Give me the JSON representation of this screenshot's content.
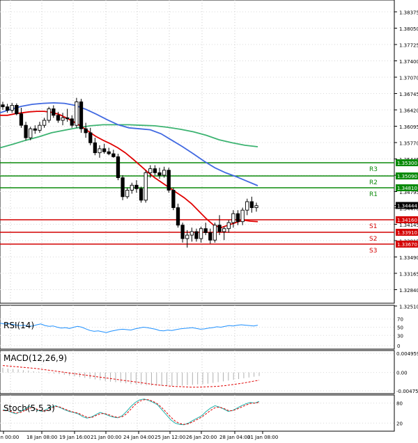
{
  "chart_data": {
    "type": "candlestick",
    "title": "",
    "price_axis": {
      "ticks": [
        "1.38375",
        "1.38050",
        "1.37725",
        "1.37400",
        "1.37070",
        "1.36745",
        "1.36420",
        "1.36095",
        "1.35770",
        "1.35445",
        "1.35120",
        "1.34795",
        "1.34470",
        "1.34145",
        "1.33815",
        "1.33490",
        "1.33165",
        "1.32840",
        "1.32510"
      ],
      "ylim": [
        1.3251,
        1.3851
      ]
    },
    "time_axis": {
      "labels": [
        "17 Jan 00:00",
        "18 Jan 08:00",
        "19 Jan 16:00",
        "21 Jan 00:00",
        "24 Jan 04:00",
        "25 Jan 12:00",
        "26 Jan 20:00",
        "28 Jan 04:00",
        "31 Jan 08:00"
      ]
    },
    "levels": [
      {
        "name": "R3",
        "value": 1.353,
        "value_label": "1.35300",
        "kind": "resistance"
      },
      {
        "name": "R2",
        "value": 1.3509,
        "value_label": "1.35090",
        "kind": "resistance"
      },
      {
        "name": "R1",
        "value": 1.3481,
        "value_label": "1.34810",
        "kind": "resistance"
      },
      {
        "name": "S1",
        "value": 1.3416,
        "value_label": "1.34160",
        "kind": "support"
      },
      {
        "name": "S2",
        "value": 1.3391,
        "value_label": "1.33910",
        "kind": "support"
      },
      {
        "name": "S3",
        "value": 1.3367,
        "value_label": "1.33670",
        "kind": "support"
      }
    ],
    "current_price": {
      "value": 1.34444,
      "label": "1.34444"
    },
    "candles": [
      [
        1.3646,
        1.3652,
        1.3636,
        1.3642
      ],
      [
        1.3642,
        1.3648,
        1.363,
        1.3635
      ],
      [
        1.3635,
        1.365,
        1.363,
        1.3645
      ],
      [
        1.3645,
        1.3649,
        1.3625,
        1.3628
      ],
      [
        1.3628,
        1.364,
        1.36,
        1.3605
      ],
      [
        1.3605,
        1.3612,
        1.3575,
        1.358
      ],
      [
        1.358,
        1.3602,
        1.3575,
        1.3598
      ],
      [
        1.3598,
        1.3605,
        1.3588,
        1.3595
      ],
      [
        1.3595,
        1.3612,
        1.359,
        1.3605
      ],
      [
        1.3605,
        1.362,
        1.36,
        1.3615
      ],
      [
        1.3615,
        1.3642,
        1.361,
        1.3638
      ],
      [
        1.3638,
        1.3645,
        1.362,
        1.3625
      ],
      [
        1.3625,
        1.3632,
        1.361,
        1.3615
      ],
      [
        1.3615,
        1.363,
        1.3605,
        1.362
      ],
      [
        1.362,
        1.3638,
        1.3612,
        1.3618
      ],
      [
        1.3618,
        1.3625,
        1.36,
        1.3605
      ],
      [
        1.3605,
        1.366,
        1.36,
        1.3652
      ],
      [
        1.3652,
        1.3658,
        1.359,
        1.3598
      ],
      [
        1.3598,
        1.361,
        1.358,
        1.359
      ],
      [
        1.359,
        1.36,
        1.3565,
        1.357
      ],
      [
        1.357,
        1.358,
        1.3545,
        1.355
      ],
      [
        1.355,
        1.3565,
        1.354,
        1.3558
      ],
      [
        1.3558,
        1.3568,
        1.3548,
        1.3552
      ],
      [
        1.3552,
        1.356,
        1.3545,
        1.3548
      ],
      [
        1.3548,
        1.3556,
        1.354,
        1.3542
      ],
      [
        1.3542,
        1.3548,
        1.3495,
        1.35
      ],
      [
        1.35,
        1.3505,
        1.3455,
        1.3462
      ],
      [
        1.3462,
        1.348,
        1.3458,
        1.3475
      ],
      [
        1.3475,
        1.349,
        1.3468,
        1.3485
      ],
      [
        1.3485,
        1.3495,
        1.347,
        1.3478
      ],
      [
        1.3478,
        1.3482,
        1.345,
        1.3455
      ],
      [
        1.3455,
        1.3515,
        1.345,
        1.351
      ],
      [
        1.351,
        1.3525,
        1.35,
        1.3518
      ],
      [
        1.3518,
        1.3525,
        1.3505,
        1.351
      ],
      [
        1.351,
        1.352,
        1.3498,
        1.3505
      ],
      [
        1.3505,
        1.3522,
        1.35,
        1.3515
      ],
      [
        1.3515,
        1.352,
        1.347,
        1.3475
      ],
      [
        1.3475,
        1.348,
        1.3435,
        1.344
      ],
      [
        1.344,
        1.3448,
        1.34,
        1.3405
      ],
      [
        1.3405,
        1.341,
        1.337,
        1.3378
      ],
      [
        1.3378,
        1.3395,
        1.336,
        1.3385
      ],
      [
        1.3385,
        1.34,
        1.3372,
        1.3392
      ],
      [
        1.3392,
        1.3398,
        1.3372,
        1.3378
      ],
      [
        1.3378,
        1.3402,
        1.337,
        1.3398
      ],
      [
        1.3398,
        1.341,
        1.3385,
        1.339
      ],
      [
        1.339,
        1.3398,
        1.3368,
        1.3375
      ],
      [
        1.3375,
        1.341,
        1.337,
        1.3405
      ],
      [
        1.3405,
        1.3425,
        1.3385,
        1.3392
      ],
      [
        1.3392,
        1.3402,
        1.3375,
        1.3398
      ],
      [
        1.3398,
        1.3415,
        1.339,
        1.341
      ],
      [
        1.341,
        1.3435,
        1.34,
        1.3428
      ],
      [
        1.3428,
        1.3435,
        1.3405,
        1.3412
      ],
      [
        1.3412,
        1.344,
        1.3405,
        1.3435
      ],
      [
        1.3435,
        1.3458,
        1.3425,
        1.3452
      ],
      [
        1.3452,
        1.3462,
        1.343,
        1.344
      ],
      [
        1.344,
        1.345,
        1.3432,
        1.3444
      ]
    ],
    "ma_fast": [
      1.3625,
      1.3625,
      1.3628,
      1.363,
      1.3632,
      1.3633,
      1.3633,
      1.3631,
      1.3627,
      1.362,
      1.3612,
      1.3603,
      1.3593,
      1.3583,
      1.3575,
      1.3568,
      1.356,
      1.355,
      1.3538,
      1.3525,
      1.3512,
      1.35,
      1.349,
      1.348,
      1.347,
      1.346,
      1.3448,
      1.3433,
      1.3418,
      1.3405,
      1.34,
      1.3405,
      1.341,
      1.3415,
      1.3413,
      1.3412
    ],
    "ma_mid": [
      1.363,
      1.3637,
      1.3643,
      1.3647,
      1.3649,
      1.365,
      1.3649,
      1.3645,
      1.3637,
      1.3627,
      1.3616,
      1.3606,
      1.36,
      1.3598,
      1.3596,
      1.3588,
      1.3575,
      1.3562,
      1.3548,
      1.3533,
      1.352,
      1.351,
      1.3502,
      1.3493,
      1.3484
    ],
    "ma_slow": [
      1.356,
      1.3567,
      1.3575,
      1.3582,
      1.359,
      1.3595,
      1.36,
      1.3604,
      1.3606,
      1.3606,
      1.3606,
      1.3605,
      1.3604,
      1.3601,
      1.3597,
      1.3592,
      1.3585,
      1.3576,
      1.357,
      1.3565,
      1.3562
    ],
    "rsi": {
      "label": "RSI(14)",
      "ticks": [
        "70",
        "50",
        "30",
        "0"
      ],
      "values": [
        60,
        58,
        59,
        57,
        55,
        54,
        55,
        52,
        53,
        56,
        58,
        54,
        52,
        53,
        50,
        48,
        49,
        47,
        50,
        52,
        50,
        46,
        42,
        40,
        41,
        39,
        37,
        40,
        42,
        44,
        45,
        44,
        43,
        46,
        48,
        50,
        49,
        47,
        45,
        42,
        41,
        43,
        42,
        44,
        46,
        47,
        48,
        49,
        47,
        45,
        46,
        48,
        49,
        51,
        50,
        52,
        54,
        53,
        55,
        56,
        55,
        54,
        53,
        55
      ]
    },
    "macd": {
      "label": "MACD(12,26,9)",
      "ticks": [
        "0.004959",
        "0.00",
        "-0.004756"
      ],
      "histogram": [
        0.0012,
        0.001,
        0.0009,
        0.0008,
        0.0006,
        0.0005,
        0.0003,
        0.0002,
        0.0,
        -0.0002,
        -0.0003,
        -0.0004,
        -0.0006,
        -0.0008,
        -0.001,
        -0.0012,
        -0.0014,
        -0.0016,
        -0.0018,
        -0.002,
        -0.0022,
        -0.0024,
        -0.0025,
        -0.0026,
        -0.0028,
        -0.003,
        -0.0031,
        -0.0032,
        -0.0033,
        -0.0034,
        -0.0034,
        -0.0035,
        -0.0035,
        -0.0035,
        -0.0034,
        -0.0034,
        -0.0033,
        -0.0032,
        -0.0031,
        -0.003,
        -0.0029,
        -0.0027,
        -0.0025,
        -0.0023,
        -0.0021,
        -0.0019,
        -0.0017,
        -0.0015,
        -0.0013,
        -0.0011,
        -0.0009
      ],
      "signal": [
        0.0018,
        0.0016,
        0.0014,
        0.0012,
        0.001,
        0.0007,
        0.0004,
        0.0001,
        -0.0002,
        -0.0005,
        -0.0008,
        -0.0011,
        -0.0014,
        -0.0017,
        -0.002,
        -0.0023,
        -0.0026,
        -0.0029,
        -0.0032,
        -0.0034,
        -0.0036,
        -0.0037,
        -0.0038,
        -0.0038,
        -0.0037,
        -0.0036,
        -0.0034,
        -0.0031,
        -0.0028,
        -0.0024,
        -0.002
      ]
    },
    "stoch": {
      "label": "Stoch(5,5,3)",
      "ticks": [
        "80",
        "20"
      ],
      "k": [
        60,
        58,
        52,
        48,
        55,
        62,
        70,
        65,
        58,
        55,
        62,
        68,
        72,
        66,
        60,
        55,
        52,
        48,
        40,
        35,
        38,
        45,
        52,
        48,
        42,
        38,
        36,
        42,
        55,
        70,
        82,
        90,
        92,
        88,
        82,
        75,
        60,
        45,
        30,
        20,
        16,
        15,
        20,
        28,
        35,
        42,
        55,
        65,
        72,
        68,
        62,
        55,
        58,
        65,
        72,
        78,
        82,
        80,
        85
      ],
      "d": [
        58,
        58,
        54,
        50,
        52,
        58,
        65,
        66,
        60,
        56,
        58,
        65,
        70,
        68,
        62,
        57,
        53,
        50,
        44,
        38,
        36,
        42,
        48,
        49,
        45,
        40,
        37,
        39,
        48,
        62,
        76,
        86,
        90,
        90,
        85,
        78,
        66,
        52,
        38,
        26,
        19,
        16,
        18,
        24,
        31,
        38,
        48,
        58,
        66,
        68,
        64,
        58,
        57,
        62,
        68,
        74,
        79,
        80,
        82
      ]
    }
  }
}
